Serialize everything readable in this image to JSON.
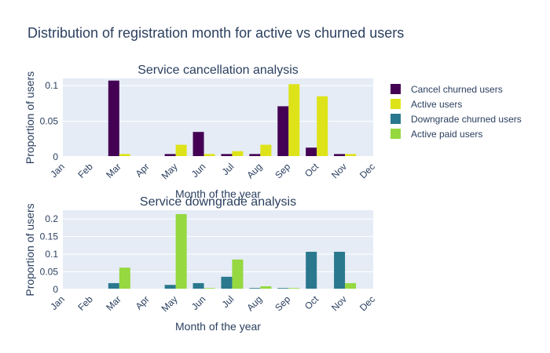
{
  "title": "Distribution of registration month for active vs churned users",
  "legend": [
    {
      "label": "Cancel churned users",
      "color": "#440154"
    },
    {
      "label": "Active users",
      "color": "#dde318"
    },
    {
      "label": "Downgrade churned users",
      "color": "#2a788e"
    },
    {
      "label": "Active paid users",
      "color": "#95d840"
    }
  ],
  "chart_data": [
    {
      "type": "bar",
      "title": "Service cancellation analysis",
      "xlabel": "Month of the year",
      "ylabel": "Proportion of users",
      "categories": [
        "Jan",
        "Feb",
        "Mar",
        "Apr",
        "May",
        "Jun",
        "Jul",
        "Aug",
        "Sep",
        "Oct",
        "Nov",
        "Dec"
      ],
      "yticks": [
        0,
        0.05,
        0.1
      ],
      "ytick_labels": [
        "0",
        "0.05",
        "0.1"
      ],
      "ylim": [
        0,
        0.11
      ],
      "grid": true,
      "series": [
        {
          "name": "Cancel churned users",
          "color": "#440154",
          "values": [
            0,
            0,
            0.107,
            0,
            0.004,
            0.035,
            0.004,
            0.004,
            0.071,
            0.013,
            0.004,
            0
          ]
        },
        {
          "name": "Active users",
          "color": "#dde318",
          "values": [
            0,
            0,
            0.004,
            0,
            0.017,
            0.004,
            0.008,
            0.017,
            0.102,
            0.085,
            0.004,
            0
          ]
        }
      ]
    },
    {
      "type": "bar",
      "title": "Service downgrade analysis",
      "xlabel": "Month of the year",
      "ylabel": "Proportion of users",
      "categories": [
        "Jan",
        "Feb",
        "Mar",
        "Apr",
        "May",
        "Jun",
        "Jul",
        "Aug",
        "Sep",
        "Oct",
        "Nov",
        "Dec"
      ],
      "yticks": [
        0,
        0.05,
        0.1,
        0.15,
        0.2
      ],
      "ytick_labels": [
        "0",
        "0.05",
        "0.1",
        "0.15",
        "0.2"
      ],
      "ylim": [
        0,
        0.225
      ],
      "grid": true,
      "series": [
        {
          "name": "Downgrade churned users",
          "color": "#2a788e",
          "values": [
            0,
            0,
            0.018,
            0,
            0.013,
            0.018,
            0.036,
            0.004,
            0.004,
            0.107,
            0.107,
            0
          ]
        },
        {
          "name": "Active paid users",
          "color": "#95d840",
          "values": [
            0,
            0,
            0.062,
            0,
            0.214,
            0.004,
            0.085,
            0.009,
            0.004,
            0,
            0.018,
            0
          ]
        }
      ]
    }
  ]
}
